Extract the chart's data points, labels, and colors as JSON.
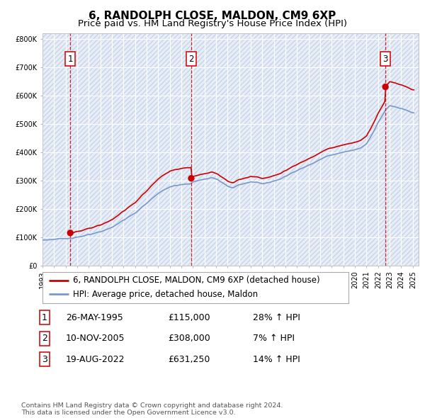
{
  "title": "6, RANDOLPH CLOSE, MALDON, CM9 6XP",
  "subtitle": "Price paid vs. HM Land Registry's House Price Index (HPI)",
  "xlim": [
    1993.0,
    2025.5
  ],
  "ylim": [
    0,
    820000
  ],
  "yticks": [
    0,
    100000,
    200000,
    300000,
    400000,
    500000,
    600000,
    700000,
    800000
  ],
  "ytick_labels": [
    "£0",
    "£100K",
    "£200K",
    "£300K",
    "£400K",
    "£500K",
    "£600K",
    "£700K",
    "£800K"
  ],
  "xticks": [
    1993,
    1994,
    1995,
    1996,
    1997,
    1998,
    1999,
    2000,
    2001,
    2002,
    2003,
    2004,
    2005,
    2006,
    2007,
    2008,
    2009,
    2010,
    2011,
    2012,
    2013,
    2014,
    2015,
    2016,
    2017,
    2018,
    2019,
    2020,
    2021,
    2022,
    2023,
    2024,
    2025
  ],
  "sale_color": "#cc0000",
  "hpi_line_color": "#7799cc",
  "grid_color": "#cccccc",
  "hatch_color": "#d0d8e8",
  "background_color": "#e8eef8",
  "sale_label": "6, RANDOLPH CLOSE, MALDON, CM9 6XP (detached house)",
  "hpi_label": "HPI: Average price, detached house, Maldon",
  "transactions": [
    {
      "num": 1,
      "date": "26-MAY-1995",
      "price": 115000,
      "hpi_pct": "28%",
      "year": 1995.4
    },
    {
      "num": 2,
      "date": "10-NOV-2005",
      "price": 308000,
      "hpi_pct": "7%",
      "year": 2005.85
    },
    {
      "num": 3,
      "date": "19-AUG-2022",
      "price": 631250,
      "hpi_pct": "14%",
      "year": 2022.63
    }
  ],
  "footnote": "Contains HM Land Registry data © Crown copyright and database right 2024.\nThis data is licensed under the Open Government Licence v3.0.",
  "title_fontsize": 11,
  "subtitle_fontsize": 9.5,
  "tick_fontsize": 7,
  "legend_fontsize": 8.5,
  "table_fontsize": 9
}
